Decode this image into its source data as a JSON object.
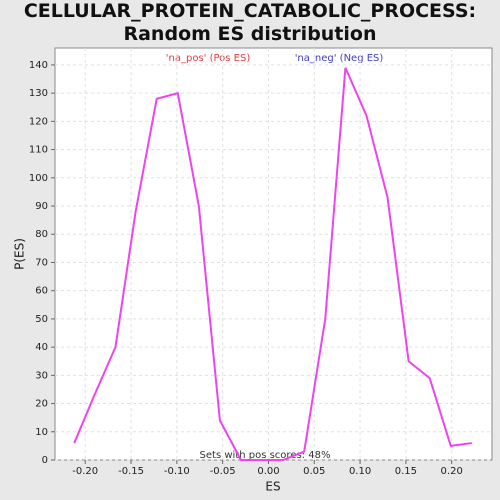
{
  "chart_data": {
    "type": "line",
    "title": "CELLULAR_PROTEIN_CATABOLIC_PROCESS: Random ES distribution",
    "xlabel": "ES",
    "ylabel": "P(ES)",
    "annotations": [
      "'na_pos' (Pos ES)",
      "'na_neg' (Neg ES)",
      "Sets with pos scores: 48%"
    ],
    "x": [
      -0.212,
      -0.19,
      -0.167,
      -0.145,
      -0.122,
      -0.099,
      -0.076,
      -0.053,
      -0.03,
      -0.007,
      0.016,
      0.039,
      0.062,
      0.084,
      0.107,
      0.13,
      0.153,
      0.176,
      0.199,
      0.222
    ],
    "series": [
      {
        "name": "ES distribution",
        "color": "#ee44ee",
        "values": [
          6,
          23,
          40,
          88,
          128,
          130,
          90,
          14,
          0,
          0,
          0,
          3,
          50,
          139,
          122,
          93,
          35,
          29,
          5,
          6
        ]
      }
    ],
    "xlim": [
      -0.233,
      0.244
    ],
    "ylim": [
      0,
      146
    ],
    "xticks": [
      {
        "value": -0.2,
        "label": "-0.20"
      },
      {
        "value": -0.15,
        "label": "-0.15"
      },
      {
        "value": -0.1,
        "label": "-0.10"
      },
      {
        "value": -0.05,
        "label": "-0.05"
      },
      {
        "value": 0,
        "label": "0.00"
      },
      {
        "value": 0.05,
        "label": "0.05"
      },
      {
        "value": 0.1,
        "label": "0.10"
      },
      {
        "value": 0.15,
        "label": "0.15"
      },
      {
        "value": 0.2,
        "label": "0.20"
      }
    ],
    "yticks": [
      0,
      10,
      20,
      30,
      40,
      50,
      60,
      70,
      80,
      90,
      100,
      110,
      120,
      130,
      140
    ],
    "grid": true
  }
}
